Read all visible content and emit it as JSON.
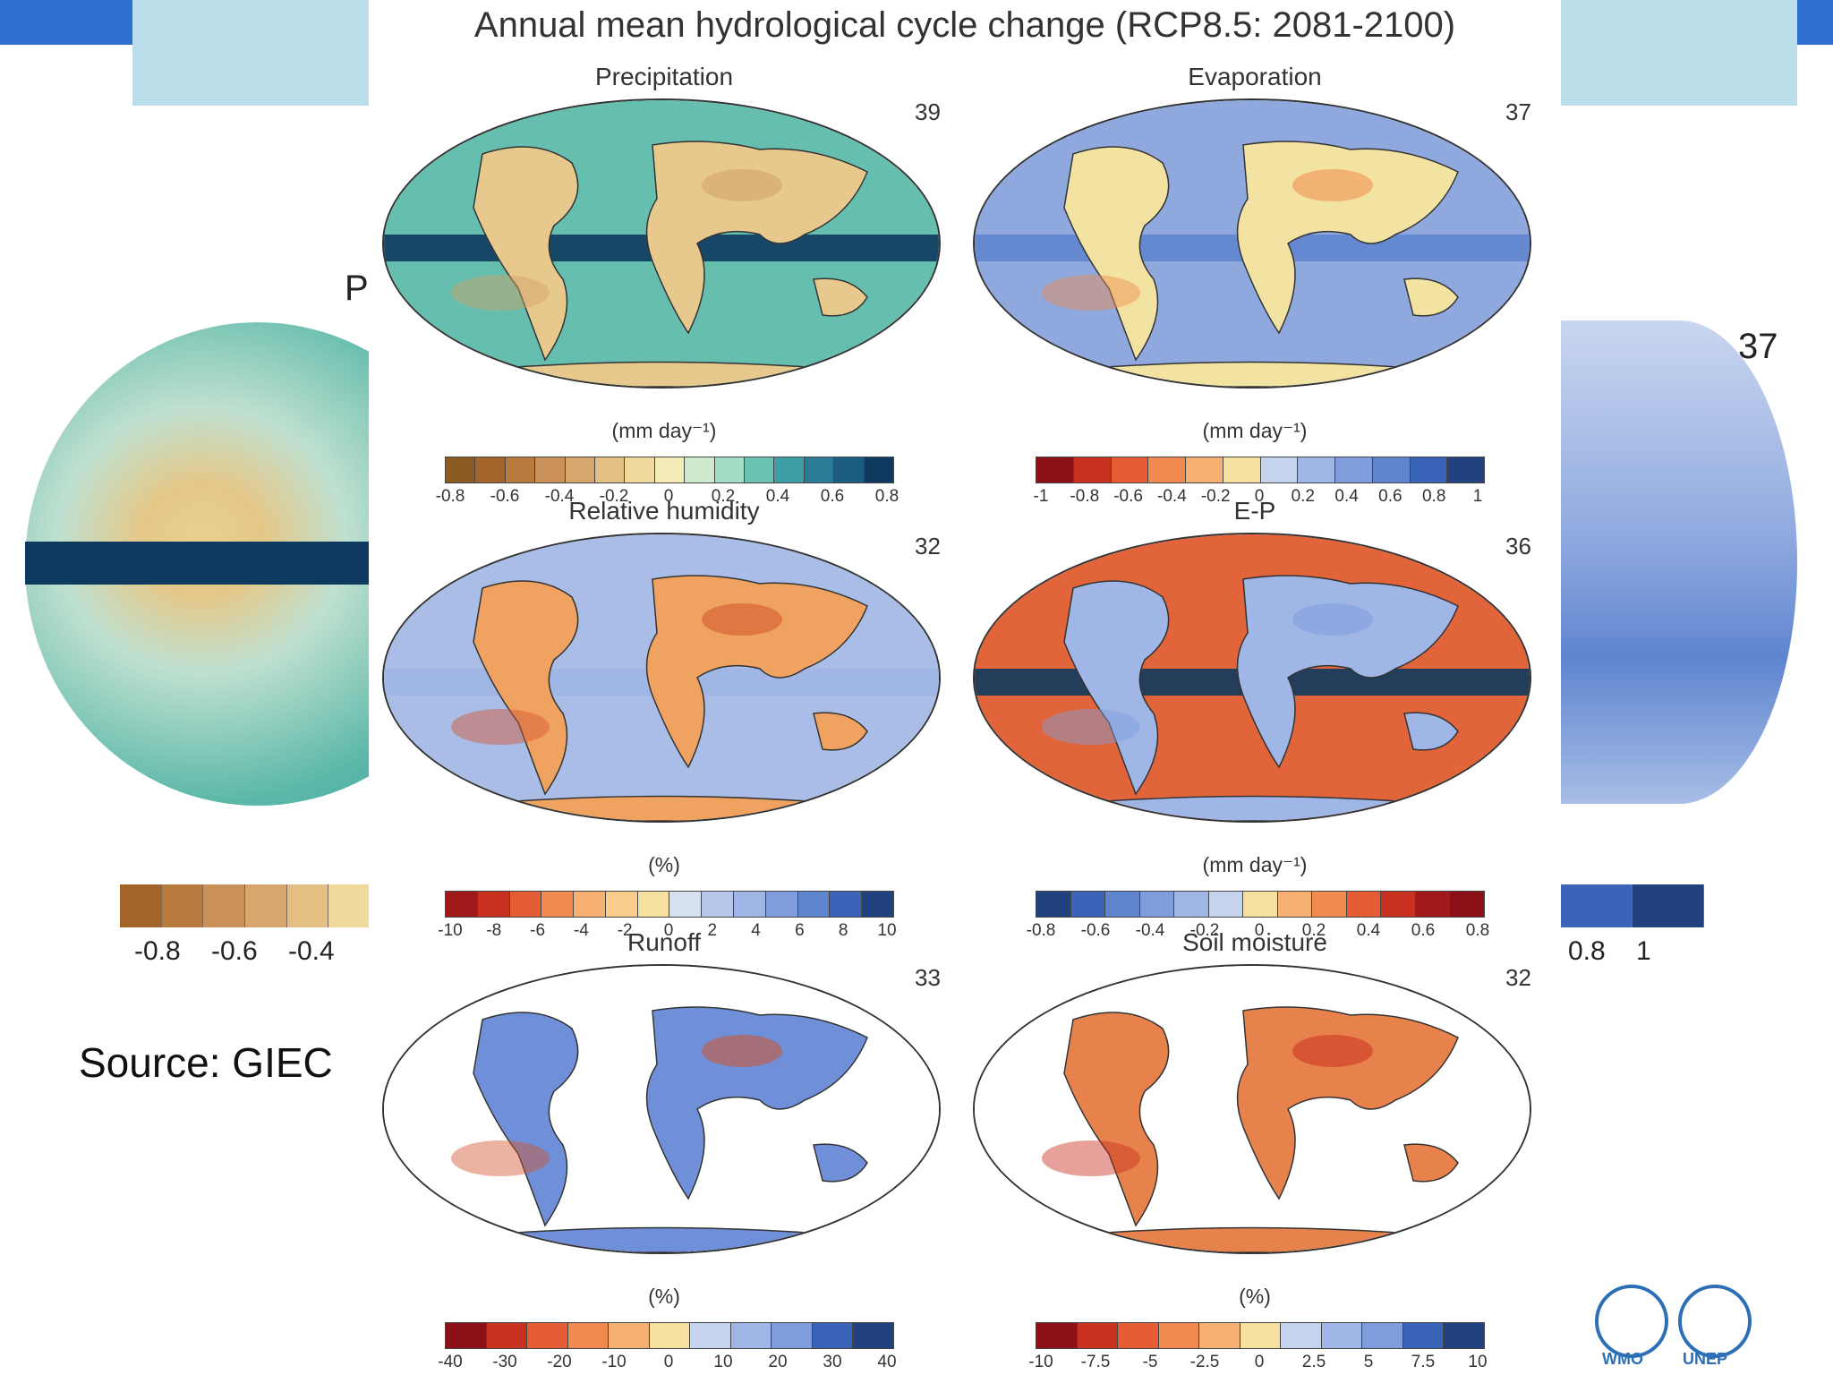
{
  "figure_title": "Annual mean hydrological cycle change (RCP8.5: 2081-2100)",
  "source": "Source: GIEC",
  "background": {
    "panel_letter": "P",
    "count": "37",
    "left_ticks": [
      "-0.8",
      "-0.6",
      "-0.4"
    ],
    "right_ticks": [
      "0.8",
      "1"
    ],
    "left_cbar_colors": [
      "#a5652a",
      "#b97a3e",
      "#c99057",
      "#d7a66c",
      "#e4bf84",
      "#f0d99c"
    ],
    "right_cbar_colors": [
      "#3a64b8",
      "#21417f"
    ]
  },
  "panels": [
    {
      "title": "Precipitation",
      "count": "39",
      "unit": "(mm day⁻¹)",
      "colors": [
        "#8c5a23",
        "#a5652a",
        "#b97a3e",
        "#c99057",
        "#d7a66c",
        "#e4bf84",
        "#f0d99c",
        "#f5ecb8",
        "#cfe9cf",
        "#a5dcc6",
        "#6cc3b3",
        "#3f9fa6",
        "#2a7b97",
        "#1d5c83",
        "#0d3a5e"
      ],
      "ticks": [
        "-0.8",
        "-0.6",
        "-0.4",
        "-0.2",
        "0",
        "0.2",
        "0.4",
        "0.6",
        "0.8"
      ],
      "map": {
        "land": "#e7c98e",
        "ocean": "#66bfae",
        "band": "#0d3a5e",
        "accent": "#d1a068"
      }
    },
    {
      "title": "Evaporation",
      "count": "37",
      "unit": "(mm day⁻¹)",
      "colors": [
        "#8b1116",
        "#c8311f",
        "#e45d34",
        "#f08a4e",
        "#f6b071",
        "#f5e0a0",
        "#c5d3ee",
        "#9fb6e6",
        "#7f9ddd",
        "#5f85cf",
        "#3a64b8",
        "#21417f"
      ],
      "ticks": [
        "-1",
        "-0.8",
        "-0.6",
        "-0.4",
        "-0.2",
        "0",
        "0.2",
        "0.4",
        "0.6",
        "0.8",
        "1"
      ],
      "map": {
        "land": "#f3e3a2",
        "ocean": "#8fa9df",
        "band": "#5f85cf",
        "accent": "#f08a4e"
      }
    },
    {
      "title": "Relative humidity",
      "count": "32",
      "unit": "(%)",
      "colors": [
        "#a01a1c",
        "#c8311f",
        "#e45d34",
        "#f08a4e",
        "#f6b071",
        "#f9cc8c",
        "#f5e0a0",
        "#d6e0f1",
        "#b7c8ec",
        "#9fb6e6",
        "#7f9ddd",
        "#5f85cf",
        "#3a64b8",
        "#21417f"
      ],
      "ticks": [
        "-10",
        "-8",
        "-6",
        "-4",
        "-2",
        "0",
        "2",
        "4",
        "6",
        "8",
        "10"
      ],
      "map": {
        "land": "#f0a261",
        "ocean": "#a9bde6",
        "band": "#9fb6e6",
        "accent": "#d2542e"
      }
    },
    {
      "title": "E-P",
      "count": "36",
      "unit": "(mm day⁻¹)",
      "colors": [
        "#21417f",
        "#3a64b8",
        "#5f85cf",
        "#7f9ddd",
        "#9fb6e6",
        "#c5d3ee",
        "#f5e0a0",
        "#f6b071",
        "#f08a4e",
        "#e45d34",
        "#c8311f",
        "#a01a1c",
        "#8b1116"
      ],
      "ticks": [
        "-0.8",
        "-0.6",
        "-0.4",
        "-0.2",
        "0",
        "0.2",
        "0.4",
        "0.6",
        "0.8"
      ],
      "map": {
        "land": "#9fb6e6",
        "ocean": "#e2643a",
        "band": "#0d3a5e",
        "accent": "#7f9ddd"
      }
    },
    {
      "title": "Runoff",
      "count": "33",
      "unit": "(%)",
      "colors": [
        "#8b1116",
        "#c8311f",
        "#e45d34",
        "#f08a4e",
        "#f6b071",
        "#f5e0a0",
        "#c5d3ee",
        "#9fb6e6",
        "#7f9ddd",
        "#3a64b8",
        "#21417f"
      ],
      "ticks": [
        "-40",
        "-30",
        "-20",
        "-10",
        "0",
        "10",
        "20",
        "30",
        "40"
      ],
      "map": {
        "land": "#6f90d8",
        "ocean": "#ffffff",
        "band": "#ffffff",
        "accent": "#d2542e"
      }
    },
    {
      "title": "Soil moisture",
      "count": "32",
      "unit": "(%)",
      "colors": [
        "#8b1116",
        "#c8311f",
        "#e45d34",
        "#f08a4e",
        "#f6b071",
        "#f5e0a0",
        "#c5d3ee",
        "#9fb6e6",
        "#7f9ddd",
        "#3a64b8",
        "#21417f"
      ],
      "ticks": [
        "-10",
        "-7.5",
        "-5",
        "-2.5",
        "0",
        "2.5",
        "5",
        "7.5",
        "10"
      ],
      "map": {
        "land": "#e8824c",
        "ocean": "#ffffff",
        "band": "#ffffff",
        "accent": "#c8311f"
      }
    }
  ],
  "logos": [
    {
      "name": "WMO",
      "color": "#2d6fb6"
    },
    {
      "name": "UNEP",
      "color": "#2d6fb6"
    }
  ]
}
